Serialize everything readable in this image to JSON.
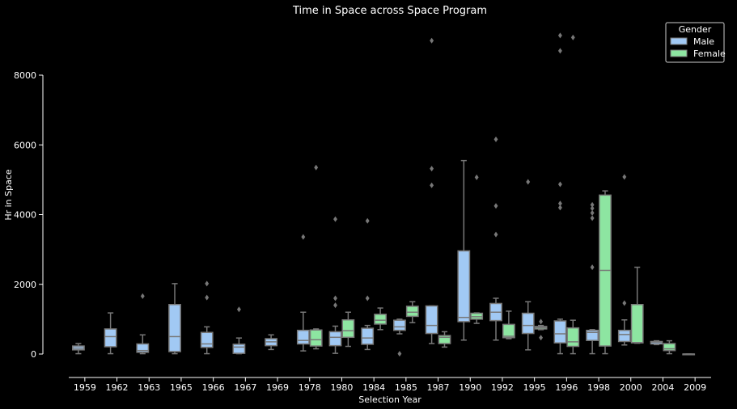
{
  "chart_data": {
    "type": "box",
    "title": "Time in Space across Space Program",
    "xlabel": "Selection Year",
    "ylabel": "Hr in Space",
    "ylim": [
      -700,
      9300
    ],
    "yticks": [
      0,
      2000,
      4000,
      6000,
      8000
    ],
    "categories": [
      "1959",
      "1962",
      "1963",
      "1965",
      "1966",
      "1967",
      "1969",
      "1978",
      "1980",
      "1984",
      "1985",
      "1987",
      "1990",
      "1992",
      "1995",
      "1996",
      "1998",
      "2000",
      "2004",
      "2009"
    ],
    "legend": {
      "title": "Gender",
      "position": "top-right"
    },
    "colors": {
      "Male": "#a1c9f4",
      "Female": "#8de5a1",
      "line": "#777777",
      "axis": "#ffffff"
    },
    "series": [
      {
        "name": "Male",
        "boxes": [
          {
            "cat": "1959",
            "whislo": 10,
            "q1": 120,
            "med": 170,
            "q3": 230,
            "whishi": 300,
            "fliers": []
          },
          {
            "cat": "1962",
            "whislo": 10,
            "q1": 210,
            "med": 500,
            "q3": 720,
            "whishi": 1180,
            "fliers": []
          },
          {
            "cat": "1963",
            "whislo": 10,
            "q1": 50,
            "med": 100,
            "q3": 290,
            "whishi": 550,
            "fliers": [
              1660
            ]
          },
          {
            "cat": "1965",
            "whislo": 10,
            "q1": 70,
            "med": 500,
            "q3": 1420,
            "whishi": 2020,
            "fliers": []
          },
          {
            "cat": "1966",
            "whislo": 10,
            "q1": 190,
            "med": 290,
            "q3": 620,
            "whishi": 780,
            "fliers": [
              1620,
              2020
            ]
          },
          {
            "cat": "1967",
            "whislo": 10,
            "q1": 20,
            "med": 200,
            "q3": 280,
            "whishi": 460,
            "fliers": [
              1280
            ]
          },
          {
            "cat": "1969",
            "whislo": 130,
            "q1": 240,
            "med": 350,
            "q3": 440,
            "whishi": 550,
            "fliers": []
          },
          {
            "cat": "1978",
            "whislo": 90,
            "q1": 290,
            "med": 390,
            "q3": 680,
            "whishi": 1200,
            "fliers": [
              3360
            ]
          },
          {
            "cat": "1980",
            "whislo": 20,
            "q1": 240,
            "med": 480,
            "q3": 640,
            "whishi": 800,
            "fliers": [
              1400,
              1600,
              3870
            ]
          },
          {
            "cat": "1984",
            "whislo": 130,
            "q1": 280,
            "med": 460,
            "q3": 740,
            "whishi": 820,
            "fliers": [
              1600,
              3820
            ]
          },
          {
            "cat": "1985",
            "whislo": 580,
            "q1": 680,
            "med": 780,
            "q3": 970,
            "whishi": 1000,
            "fliers": [
              10
            ]
          },
          {
            "cat": "1987",
            "whislo": 300,
            "q1": 590,
            "med": 820,
            "q3": 1380,
            "whishi": 1380,
            "fliers": [
              4840,
              5320,
              8990
            ]
          },
          {
            "cat": "1990",
            "whislo": 400,
            "q1": 930,
            "med": 1050,
            "q3": 2960,
            "whishi": 5550,
            "fliers": []
          },
          {
            "cat": "1992",
            "whislo": 400,
            "q1": 960,
            "med": 1200,
            "q3": 1450,
            "whishi": 1600,
            "fliers": [
              3430,
              4250,
              6160
            ]
          },
          {
            "cat": "1995",
            "whislo": 120,
            "q1": 590,
            "med": 820,
            "q3": 1170,
            "whishi": 1500,
            "fliers": [
              4940
            ]
          },
          {
            "cat": "1996",
            "whislo": 10,
            "q1": 320,
            "med": 580,
            "q3": 950,
            "whishi": 1000,
            "fliers": [
              4200,
              4320,
              4870,
              8700,
              9140
            ]
          },
          {
            "cat": "1998",
            "whislo": 10,
            "q1": 390,
            "med": 620,
            "q3": 680,
            "whishi": 700,
            "fliers": [
              2490,
              3900,
              4050,
              4180,
              4280
            ]
          },
          {
            "cat": "2000",
            "whislo": 260,
            "q1": 360,
            "med": 560,
            "q3": 680,
            "whishi": 980,
            "fliers": [
              1460,
              5080
            ]
          },
          {
            "cat": "2004",
            "whislo": 270,
            "q1": 290,
            "med": 340,
            "q3": 360,
            "whishi": 380,
            "fliers": []
          },
          {
            "cat": "2009",
            "whislo": 0,
            "q1": 0,
            "med": 0,
            "q3": 0,
            "whishi": 0,
            "fliers": []
          }
        ]
      },
      {
        "name": "Female",
        "boxes": [
          {
            "cat": "1978",
            "whislo": 150,
            "q1": 230,
            "med": 410,
            "q3": 690,
            "whishi": 720,
            "fliers": [
              5350
            ]
          },
          {
            "cat": "1980",
            "whislo": 220,
            "q1": 480,
            "med": 670,
            "q3": 980,
            "whishi": 1200,
            "fliers": []
          },
          {
            "cat": "1984",
            "whislo": 700,
            "q1": 860,
            "med": 970,
            "q3": 1140,
            "whishi": 1320,
            "fliers": []
          },
          {
            "cat": "1985",
            "whislo": 900,
            "q1": 1080,
            "med": 1200,
            "q3": 1370,
            "whishi": 1500,
            "fliers": []
          },
          {
            "cat": "1987",
            "whislo": 200,
            "q1": 300,
            "med": 480,
            "q3": 530,
            "whishi": 640,
            "fliers": []
          },
          {
            "cat": "1990",
            "whislo": 880,
            "q1": 1000,
            "med": 1070,
            "q3": 1170,
            "whishi": 1180,
            "fliers": [
              5070
            ]
          },
          {
            "cat": "1992",
            "whislo": 440,
            "q1": 470,
            "med": 510,
            "q3": 850,
            "whishi": 1230,
            "fliers": []
          },
          {
            "cat": "1995",
            "whislo": 700,
            "q1": 720,
            "med": 760,
            "q3": 790,
            "whishi": 820,
            "fliers": [
              470,
              930
            ]
          },
          {
            "cat": "1996",
            "whislo": 10,
            "q1": 220,
            "med": 350,
            "q3": 750,
            "whishi": 970,
            "fliers": [
              9080
            ]
          },
          {
            "cat": "1998",
            "whislo": 10,
            "q1": 230,
            "med": 2400,
            "q3": 4560,
            "whishi": 4680,
            "fliers": []
          },
          {
            "cat": "2000",
            "whislo": 310,
            "q1": 320,
            "med": 330,
            "q3": 1420,
            "whishi": 2490,
            "fliers": []
          },
          {
            "cat": "2004",
            "whislo": 10,
            "q1": 100,
            "med": 150,
            "q3": 300,
            "whishi": 380,
            "fliers": []
          }
        ]
      }
    ]
  }
}
